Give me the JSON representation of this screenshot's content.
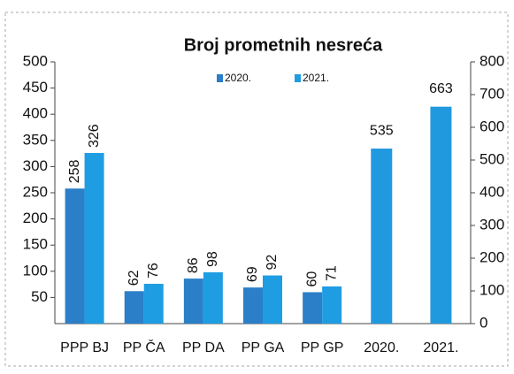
{
  "chart_data": {
    "type": "bar",
    "title": "Broj prometnih nesreća",
    "categories": [
      "PPP BJ",
      "PP ČA",
      "PP DA",
      "PP GA",
      "PP GP",
      "2020.",
      "2021."
    ],
    "series": [
      {
        "name": "2020.",
        "color": "#2a7fc8",
        "values": [
          258,
          62,
          86,
          69,
          60,
          null,
          null
        ]
      },
      {
        "name": "2021.",
        "color": "#1f9de2",
        "values": [
          326,
          76,
          98,
          92,
          71,
          null,
          null
        ]
      },
      {
        "color": "#2199df",
        "axis": "y2",
        "values": [
          null,
          null,
          null,
          null,
          null,
          535,
          663
        ]
      }
    ],
    "ylim": [
      0,
      500
    ],
    "yticks": [
      50,
      100,
      150,
      200,
      250,
      300,
      350,
      400,
      450,
      500
    ],
    "y2lim": [
      0,
      800
    ],
    "y2ticks": [
      0,
      100,
      200,
      300,
      400,
      500,
      600,
      700,
      800
    ],
    "legend": "top"
  }
}
